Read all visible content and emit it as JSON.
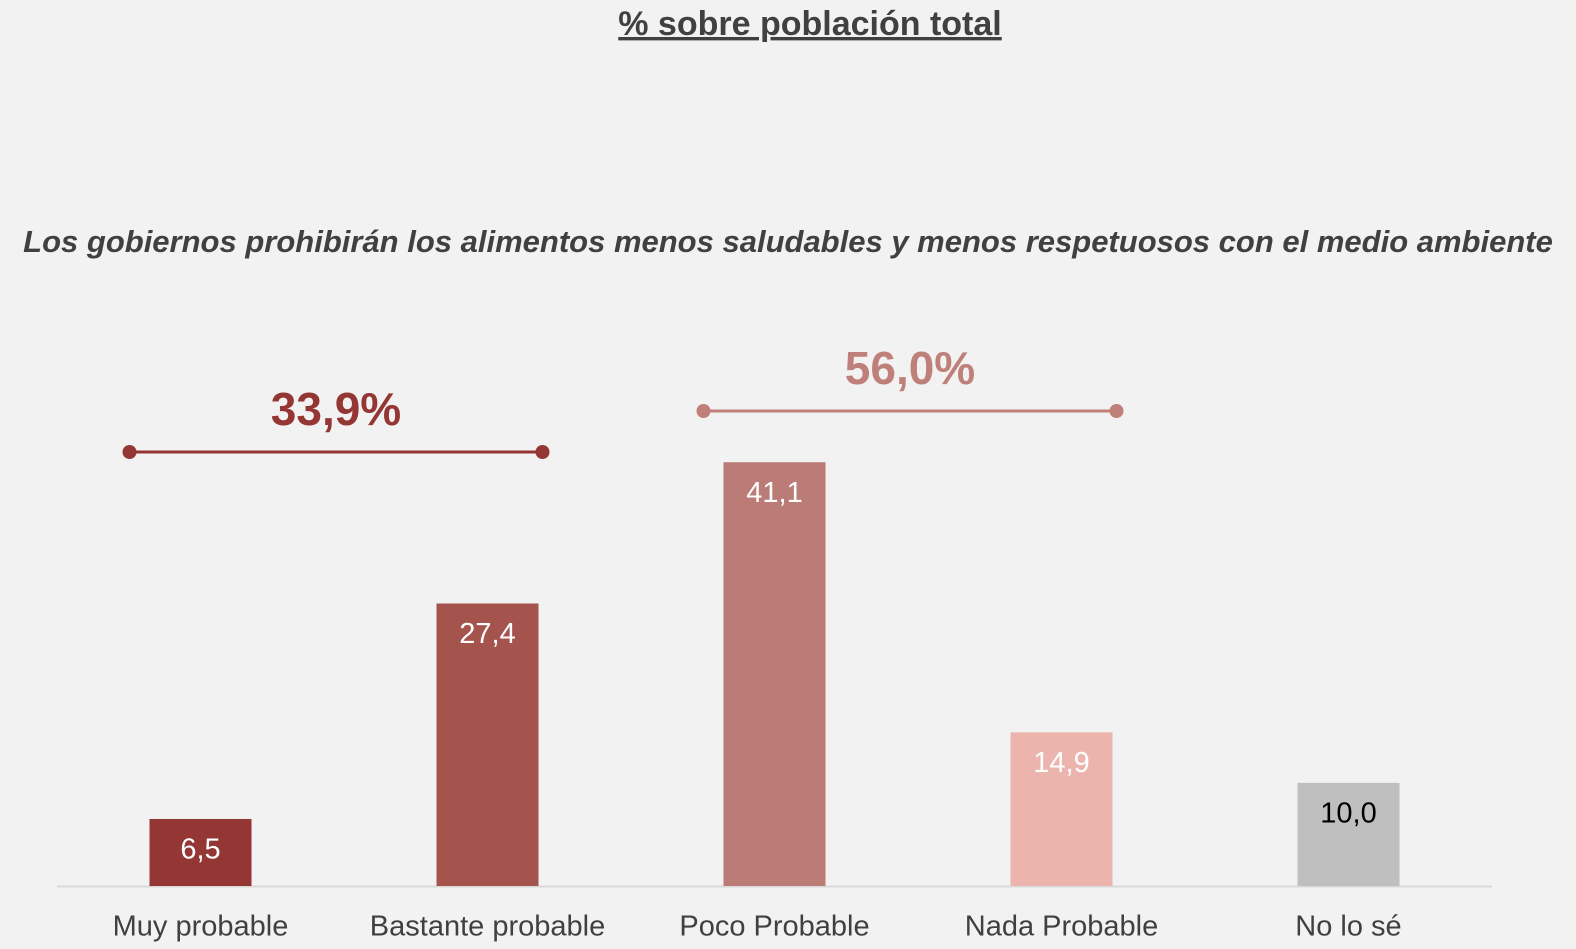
{
  "chart_data": {
    "type": "bar",
    "title": "% sobre población total",
    "subtitle": "Los gobiernos prohibirán los alimentos menos saludables y menos respetuosos con el medio ambiente",
    "categories": [
      "Muy probable",
      "Bastante probable",
      "Poco Probable",
      "Nada Probable",
      "No lo sé"
    ],
    "values": [
      6.5,
      27.4,
      41.1,
      14.9,
      10.0
    ],
    "value_labels": [
      "6,5",
      "27,4",
      "41,1",
      "14,9",
      "10,0"
    ],
    "colors": [
      "#943634",
      "#a5534d",
      "#bb7b76",
      "#ebb5ad",
      "#bfbfbf"
    ],
    "label_colors": [
      "#ffffff",
      "#ffffff",
      "#ffffff",
      "#ffffff",
      "#000000"
    ],
    "ylim": [
      0,
      45
    ],
    "annotations": [
      {
        "text": "33,9%",
        "color": "#943634"
      },
      {
        "text": "56,0%",
        "color": "#c0807a"
      }
    ]
  }
}
